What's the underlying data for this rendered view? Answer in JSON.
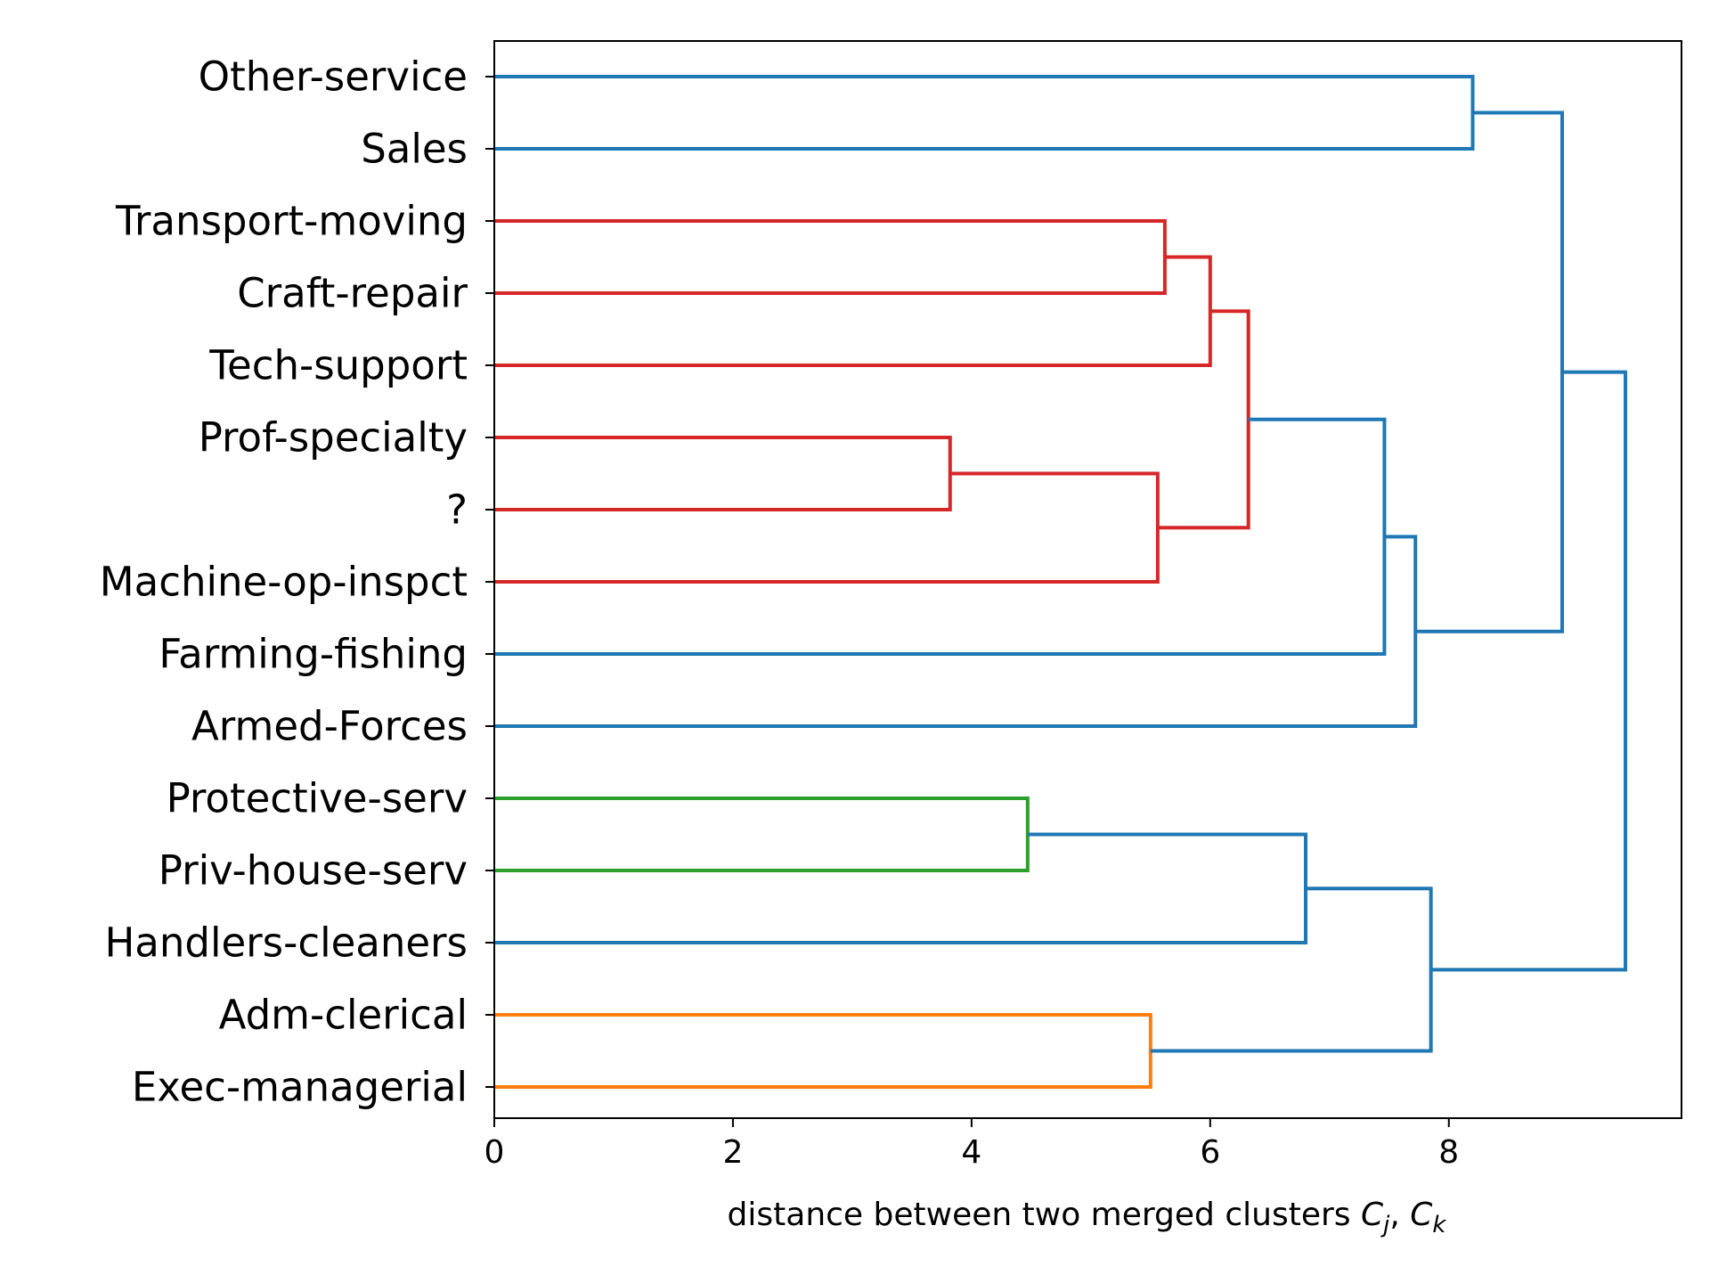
{
  "chart_data": {
    "type": "dendrogram",
    "orientation": "horizontal",
    "leaves": [
      "Other-service",
      "Sales",
      "Transport-moving",
      "Craft-repair",
      "Tech-support",
      "Prof-specialty",
      "?",
      "Machine-op-inspct",
      "Farming-fishing",
      "Armed-Forces",
      "Protective-serv",
      "Priv-house-serv",
      "Handlers-cleaners",
      "Adm-clerical",
      "Exec-managerial"
    ],
    "merges": [
      {
        "left": "Prof-specialty",
        "right": "?",
        "distance": 3.82,
        "color": "#d62728"
      },
      {
        "left": "Protective-serv",
        "right": "Priv-house-serv",
        "distance": 4.47,
        "color": "#2ca02c"
      },
      {
        "left": "Adm-clerical",
        "right": "Exec-managerial",
        "distance": 5.5,
        "color": "#ff7f0e"
      },
      {
        "left": "Prof-specialty + ?",
        "right": "Machine-op-inspct",
        "distance": 5.56,
        "color": "#d62728"
      },
      {
        "left": "Transport-moving",
        "right": "Craft-repair",
        "distance": 5.62,
        "color": "#d62728"
      },
      {
        "left": "Transport-moving + Craft-repair",
        "right": "Tech-support",
        "distance": 6.0,
        "color": "#d62728"
      },
      {
        "left": "Transport-moving … Tech-support",
        "right": "Prof-specialty … Machine-op-inspct",
        "distance": 6.32,
        "color": "#d62728"
      },
      {
        "left": "Protective-serv + Priv-house-serv",
        "right": "Handlers-cleaners",
        "distance": 6.8,
        "color": "#1f77b4"
      },
      {
        "left": "Transport-moving … Machine-op-inspct",
        "right": "Farming-fishing",
        "distance": 7.46,
        "color": "#1f77b4"
      },
      {
        "left": "Transport-moving … Farming-fishing",
        "right": "Armed-Forces",
        "distance": 7.72,
        "color": "#1f77b4"
      },
      {
        "left": "Protective-serv … Handlers-cleaners",
        "right": "Adm-clerical + Exec-managerial",
        "distance": 7.85,
        "color": "#1f77b4"
      },
      {
        "left": "Other-service",
        "right": "Sales",
        "distance": 8.2,
        "color": "#1f77b4"
      },
      {
        "left": "Other-service + Sales",
        "right": "Transport-moving … Armed-Forces",
        "distance": 8.95,
        "color": "#1f77b4"
      },
      {
        "left": "Other-service … Armed-Forces",
        "right": "Protective-serv … Exec-managerial",
        "distance": 9.48,
        "color": "#1f77b4"
      }
    ],
    "xlim": [
      0,
      9.95
    ],
    "xticks": [
      0,
      2,
      4,
      6,
      8
    ],
    "tick_labels": [
      "0",
      "2",
      "4",
      "6",
      "8"
    ],
    "xlabel": "distance between two merged clusters C_j, C_k",
    "xlabel_prefix": "distance between two merged clusters ",
    "xlabel_var1": "C",
    "xlabel_sub1": "j",
    "xlabel_sep": ", ",
    "xlabel_var2": "C",
    "xlabel_sub2": "k",
    "colors": {
      "above_threshold": "#1f77b4",
      "cluster_red": "#d62728",
      "cluster_green": "#2ca02c",
      "cluster_orange": "#ff7f0e"
    },
    "grid": false,
    "legend": "none"
  }
}
